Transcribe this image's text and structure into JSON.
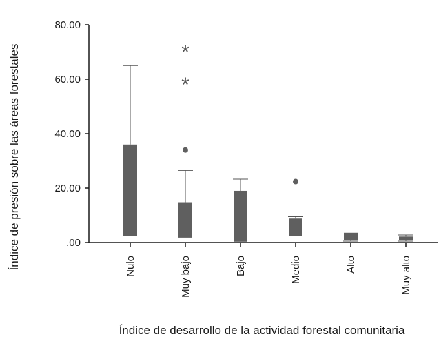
{
  "chart_data": {
    "type": "boxplot",
    "xlabel": "Índice de desarrollo de la actividad forestal comunitaria",
    "ylabel": "Índice de presión sobre las áreas forestales",
    "ylim": [
      0,
      80
    ],
    "yticks": [
      {
        "value": 0,
        "label": ".00"
      },
      {
        "value": 20,
        "label": "20.00"
      },
      {
        "value": 40,
        "label": "40.00"
      },
      {
        "value": 60,
        "label": "60.00"
      },
      {
        "value": 80,
        "label": "80.00"
      }
    ],
    "categories": [
      "Nulo",
      "Muy bajo",
      "Bajo",
      "Medio",
      "Alto",
      "Muy alto"
    ],
    "boxes": [
      {
        "category": "Nulo",
        "whisker_low": 2.3,
        "q1": 2.3,
        "q3": 36.0,
        "whisker_high": 65.0,
        "outliers": [],
        "extremes": []
      },
      {
        "category": "Muy bajo",
        "whisker_low": 1.8,
        "q1": 1.8,
        "q3": 14.8,
        "whisker_high": 26.5,
        "outliers": [
          34.0
        ],
        "extremes": [
          59.0,
          71.0
        ]
      },
      {
        "category": "Bajo",
        "whisker_low": 0.3,
        "q1": 0.3,
        "q3": 19.0,
        "whisker_high": 23.3,
        "outliers": [],
        "extremes": []
      },
      {
        "category": "Medio",
        "whisker_low": 2.3,
        "q1": 2.3,
        "q3": 8.8,
        "whisker_high": 9.5,
        "outliers": [
          22.4
        ],
        "extremes": []
      },
      {
        "category": "Alto",
        "whisker_low": 0.5,
        "q1": 1.0,
        "q3": 3.6,
        "whisker_high": 3.6,
        "outliers": [],
        "extremes": []
      },
      {
        "category": "Muy alto",
        "whisker_low": 0.5,
        "q1": 0.8,
        "q3": 2.2,
        "whisker_high": 2.8,
        "outliers": [],
        "extremes": []
      }
    ],
    "colors": {
      "box": "#5f5f5f",
      "whisker": "#555555",
      "axis": "#1a1a1a"
    },
    "grid": false,
    "legend": "none"
  }
}
